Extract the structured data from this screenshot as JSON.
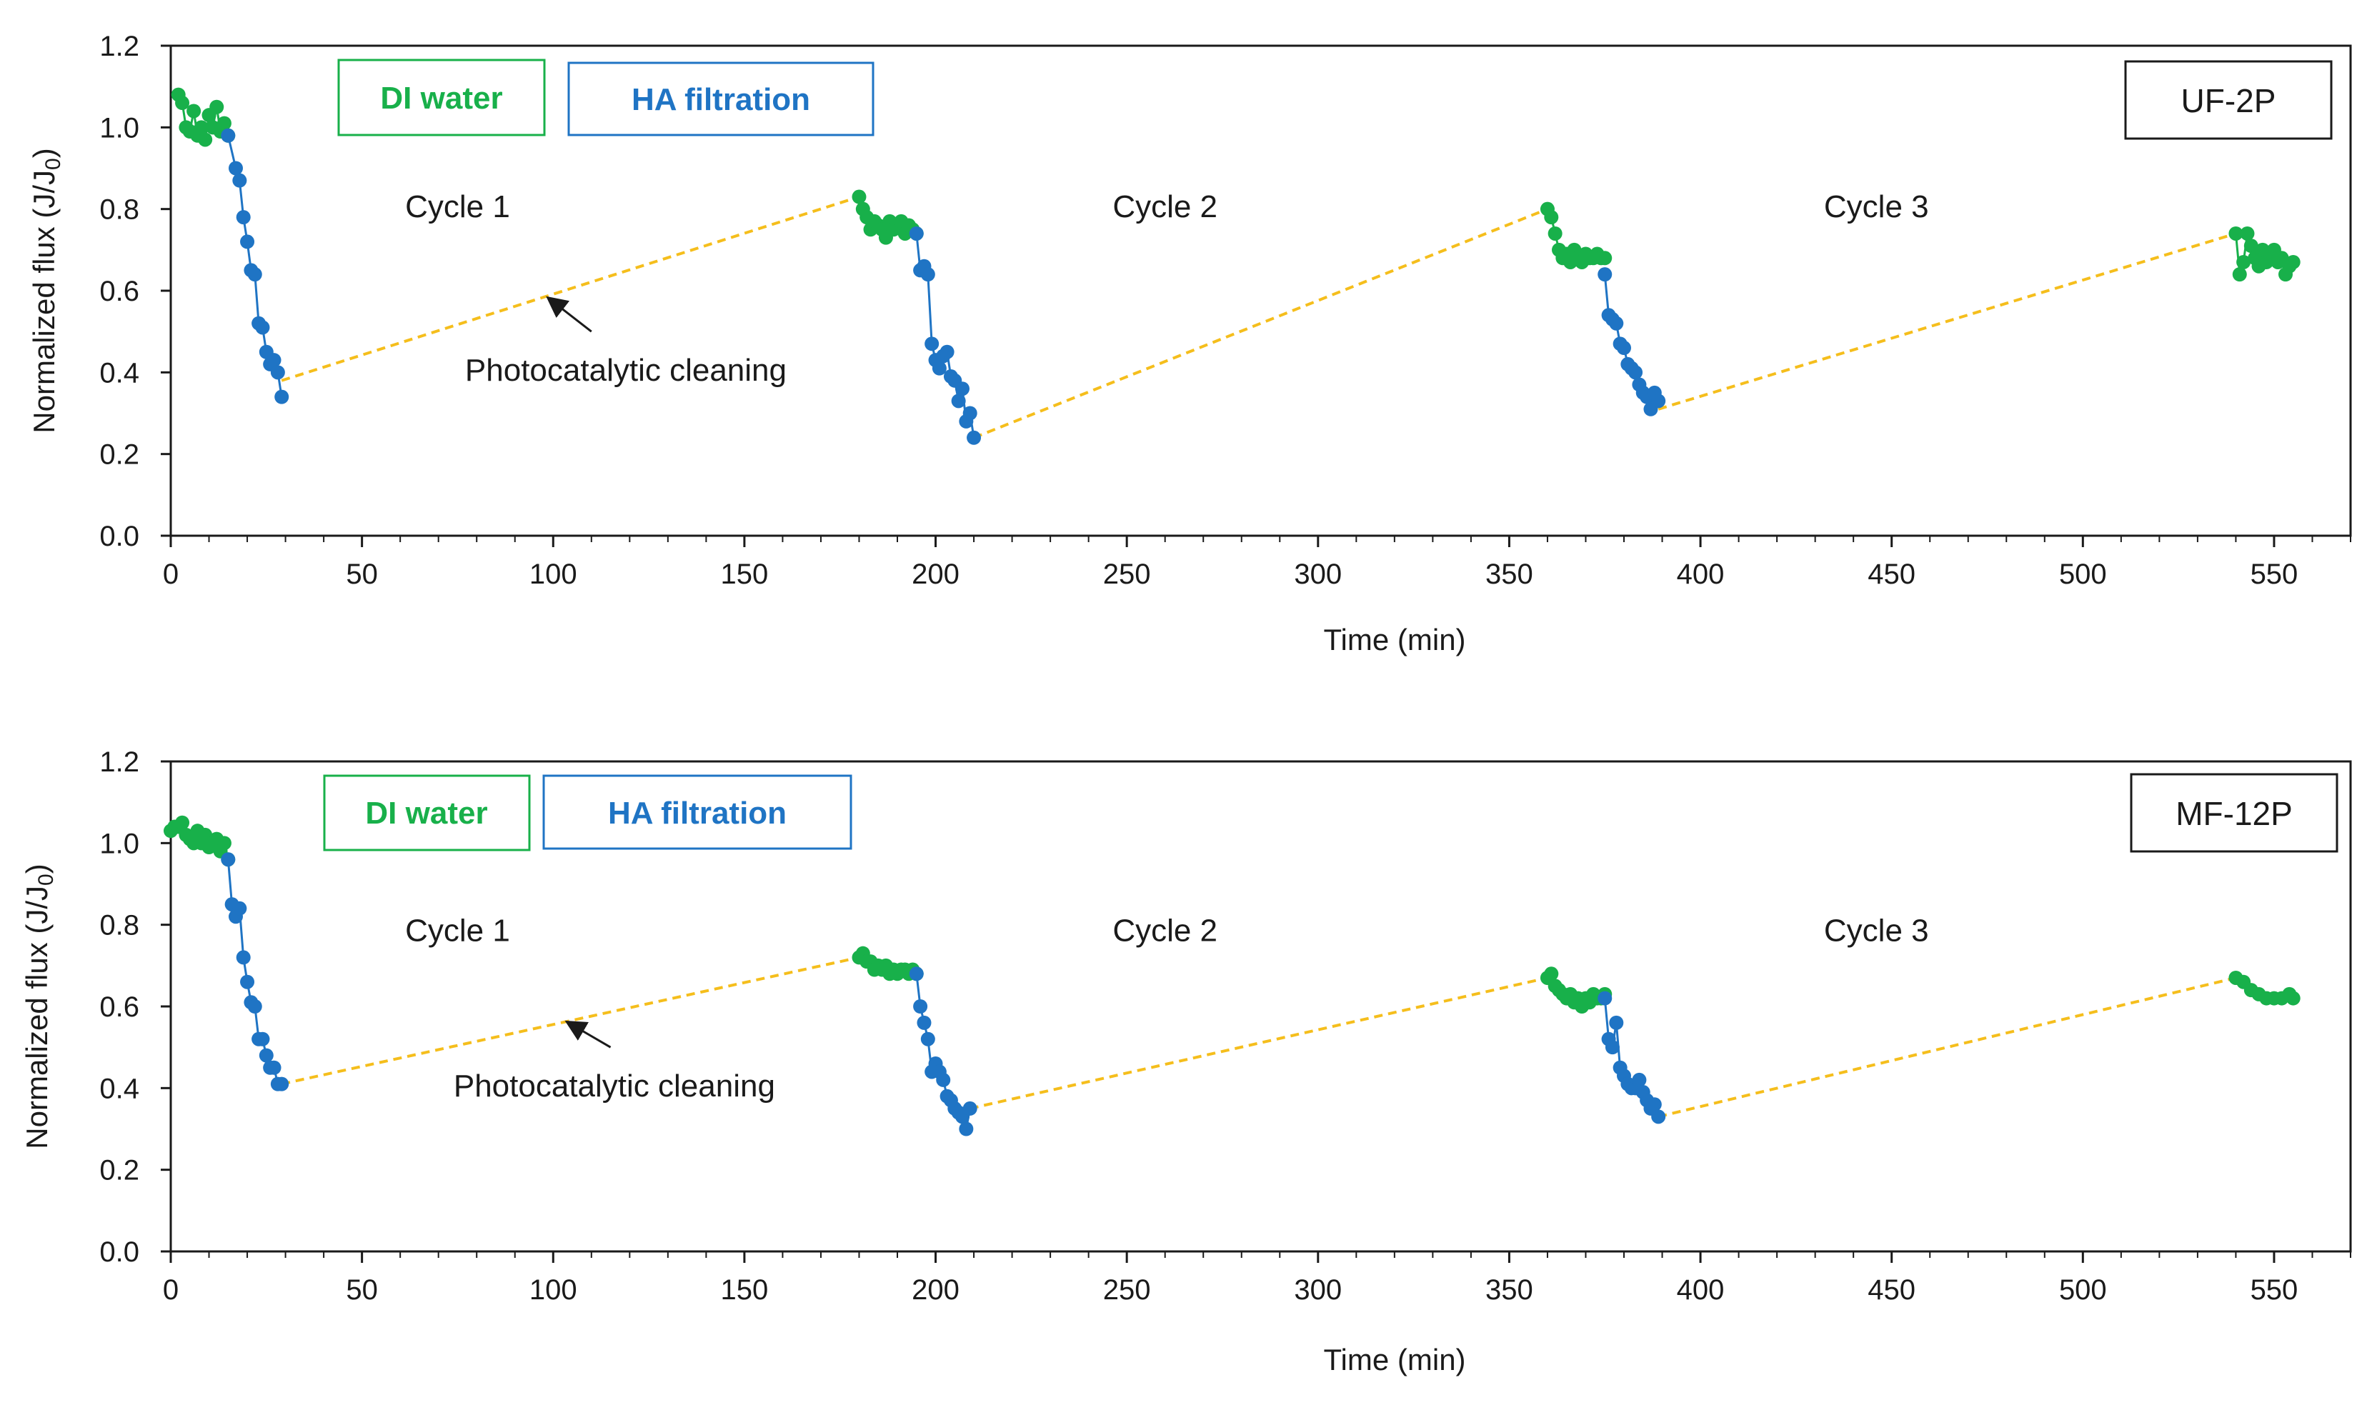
{
  "colors": {
    "di_water": "#18b04a",
    "ha_filtration": "#1f74c4",
    "cleaning": "#f5be1c",
    "axis": "#1a1a1a"
  },
  "chart_data": [
    {
      "type": "scatter",
      "id": "UF-2P",
      "xlabel": "Time (min)",
      "ylabel": "Normalized flux (J/J",
      "ylabel_sub": "0",
      "ylabel_close": ")",
      "xlim": [
        0,
        570
      ],
      "ylim": [
        0,
        1.2
      ],
      "xticks": [
        "0",
        "50",
        "100",
        "150",
        "200",
        "250",
        "300",
        "350",
        "400",
        "450",
        "500",
        "550"
      ],
      "yticks": [
        "0.0",
        "0.2",
        "0.4",
        "0.6",
        "0.8",
        "1.0",
        "1.2"
      ],
      "legend": [
        "DI water",
        "HA filtration"
      ],
      "cycle_labels": [
        {
          "text": "Cycle 1",
          "x": 75,
          "y": 0.78
        },
        {
          "text": "Cycle 2",
          "x": 260,
          "y": 0.78
        },
        {
          "text": "Cycle 3",
          "x": 446,
          "y": 0.78
        }
      ],
      "annotation": {
        "text": "Photocatalytic cleaning",
        "text_x": 119,
        "text_y": 0.38,
        "arrow_from": [
          110,
          0.5
        ],
        "arrow_to": [
          99,
          0.58
        ]
      },
      "series": [
        {
          "name": "DI water",
          "cycle": 1,
          "x": [
            2,
            3,
            4,
            5,
            6,
            7,
            8,
            9,
            10,
            11,
            12,
            13,
            14,
            15
          ],
          "y": [
            1.08,
            1.06,
            1.0,
            0.99,
            1.04,
            0.98,
            1.0,
            0.97,
            1.03,
            1.0,
            1.05,
            0.99,
            1.01,
            0.98
          ]
        },
        {
          "name": "HA filtration",
          "cycle": 1,
          "x": [
            15,
            17,
            18,
            19,
            20,
            21,
            22,
            23,
            24,
            25,
            26,
            27,
            28,
            29
          ],
          "y": [
            0.98,
            0.9,
            0.87,
            0.78,
            0.72,
            0.65,
            0.64,
            0.52,
            0.51,
            0.45,
            0.42,
            0.43,
            0.4,
            0.34
          ]
        },
        {
          "name": "DI water",
          "cycle": 2,
          "x": [
            180,
            181,
            182,
            183,
            184,
            185,
            186,
            187,
            188,
            189,
            190,
            191,
            192,
            193,
            194,
            195
          ],
          "y": [
            0.83,
            0.8,
            0.78,
            0.75,
            0.77,
            0.76,
            0.75,
            0.73,
            0.77,
            0.75,
            0.76,
            0.77,
            0.74,
            0.76,
            0.75,
            0.74
          ]
        },
        {
          "name": "HA filtration",
          "cycle": 2,
          "x": [
            195,
            196,
            197,
            198,
            199,
            200,
            201,
            202,
            203,
            204,
            205,
            206,
            207,
            208,
            209,
            210
          ],
          "y": [
            0.74,
            0.65,
            0.66,
            0.64,
            0.47,
            0.43,
            0.41,
            0.44,
            0.45,
            0.39,
            0.38,
            0.33,
            0.36,
            0.28,
            0.3,
            0.24
          ]
        },
        {
          "name": "DI water",
          "cycle": 3,
          "x": [
            360,
            361,
            362,
            363,
            364,
            365,
            366,
            367,
            368,
            369,
            370,
            371,
            372,
            373,
            374,
            375
          ],
          "y": [
            0.8,
            0.78,
            0.74,
            0.7,
            0.68,
            0.69,
            0.67,
            0.7,
            0.68,
            0.67,
            0.69,
            0.68,
            0.68,
            0.69,
            0.68,
            0.68
          ]
        },
        {
          "name": "HA filtration",
          "cycle": 3,
          "x": [
            375,
            376,
            377,
            378,
            379,
            380,
            381,
            382,
            383,
            384,
            385,
            386,
            387,
            388,
            389
          ],
          "y": [
            0.64,
            0.54,
            0.53,
            0.52,
            0.47,
            0.46,
            0.42,
            0.41,
            0.4,
            0.37,
            0.35,
            0.34,
            0.31,
            0.35,
            0.33
          ]
        },
        {
          "name": "DI water",
          "cycle": 4,
          "x": [
            540,
            541,
            542,
            543,
            544,
            545,
            546,
            547,
            548,
            549,
            550,
            551,
            552,
            553,
            554,
            555
          ],
          "y": [
            0.74,
            0.64,
            0.67,
            0.74,
            0.71,
            0.68,
            0.66,
            0.7,
            0.67,
            0.69,
            0.7,
            0.67,
            0.68,
            0.64,
            0.66,
            0.67
          ]
        },
        {
          "name": "Photocatalytic cleaning",
          "x": [
            29,
            180,
            210,
            360,
            389,
            540
          ],
          "y": [
            0.38,
            0.83,
            0.24,
            0.8,
            0.31,
            0.74
          ],
          "segments": [
            [
              0,
              1
            ],
            [
              2,
              3
            ],
            [
              4,
              5
            ]
          ]
        }
      ]
    },
    {
      "type": "scatter",
      "id": "MF-12P",
      "xlabel": "Time (min)",
      "ylabel": "Normalized flux (J/J",
      "ylabel_sub": "0",
      "ylabel_close": ")",
      "xlim": [
        0,
        570
      ],
      "ylim": [
        0,
        1.2
      ],
      "xticks": [
        "0",
        "50",
        "100",
        "150",
        "200",
        "250",
        "300",
        "350",
        "400",
        "450",
        "500",
        "550"
      ],
      "yticks": [
        "0.0",
        "0.2",
        "0.4",
        "0.6",
        "0.8",
        "1.0",
        "1.2"
      ],
      "legend": [
        "DI water",
        "HA filtration"
      ],
      "cycle_labels": [
        {
          "text": "Cycle 1",
          "x": 75,
          "y": 0.76
        },
        {
          "text": "Cycle 2",
          "x": 260,
          "y": 0.76
        },
        {
          "text": "Cycle 3",
          "x": 446,
          "y": 0.76
        }
      ],
      "annotation": {
        "text": "Photocatalytic cleaning",
        "text_x": 116,
        "text_y": 0.38,
        "arrow_from": [
          115,
          0.5
        ],
        "arrow_to": [
          104,
          0.56
        ]
      },
      "series": [
        {
          "name": "DI water",
          "cycle": 1,
          "x": [
            0,
            1,
            2,
            3,
            4,
            5,
            6,
            7,
            8,
            9,
            10,
            11,
            12,
            13,
            14,
            15
          ],
          "y": [
            1.03,
            1.04,
            1.04,
            1.05,
            1.02,
            1.01,
            1.0,
            1.03,
            1.0,
            1.02,
            0.99,
            1.0,
            1.01,
            0.98,
            1.0,
            0.96
          ]
        },
        {
          "name": "HA filtration",
          "cycle": 1,
          "x": [
            15,
            16,
            17,
            18,
            19,
            20,
            21,
            22,
            23,
            24,
            25,
            26,
            27,
            28,
            29
          ],
          "y": [
            0.96,
            0.85,
            0.82,
            0.84,
            0.72,
            0.66,
            0.61,
            0.6,
            0.52,
            0.52,
            0.48,
            0.45,
            0.45,
            0.41,
            0.41
          ]
        },
        {
          "name": "DI water",
          "cycle": 2,
          "x": [
            180,
            181,
            182,
            183,
            184,
            185,
            186,
            187,
            188,
            189,
            190,
            191,
            192,
            193,
            194,
            195
          ],
          "y": [
            0.72,
            0.73,
            0.71,
            0.71,
            0.69,
            0.7,
            0.69,
            0.7,
            0.68,
            0.69,
            0.68,
            0.69,
            0.69,
            0.68,
            0.69,
            0.68
          ]
        },
        {
          "name": "HA filtration",
          "cycle": 2,
          "x": [
            195,
            196,
            197,
            198,
            199,
            200,
            201,
            202,
            203,
            204,
            205,
            206,
            207,
            208,
            209
          ],
          "y": [
            0.68,
            0.6,
            0.56,
            0.52,
            0.44,
            0.46,
            0.44,
            0.42,
            0.38,
            0.37,
            0.35,
            0.34,
            0.33,
            0.3,
            0.35
          ]
        },
        {
          "name": "DI water",
          "cycle": 3,
          "x": [
            360,
            361,
            362,
            363,
            364,
            365,
            366,
            367,
            368,
            369,
            370,
            371,
            372,
            373,
            374,
            375
          ],
          "y": [
            0.67,
            0.68,
            0.65,
            0.64,
            0.63,
            0.62,
            0.63,
            0.61,
            0.62,
            0.6,
            0.62,
            0.61,
            0.63,
            0.62,
            0.62,
            0.63
          ]
        },
        {
          "name": "HA filtration",
          "cycle": 3,
          "x": [
            375,
            376,
            377,
            378,
            379,
            380,
            381,
            382,
            383,
            384,
            385,
            386,
            387,
            388,
            389
          ],
          "y": [
            0.62,
            0.52,
            0.5,
            0.56,
            0.45,
            0.43,
            0.41,
            0.4,
            0.4,
            0.42,
            0.39,
            0.37,
            0.35,
            0.36,
            0.33
          ]
        },
        {
          "name": "DI water",
          "cycle": 4,
          "x": [
            540,
            542,
            544,
            546,
            548,
            550,
            552,
            554,
            555
          ],
          "y": [
            0.67,
            0.66,
            0.64,
            0.63,
            0.62,
            0.62,
            0.62,
            0.63,
            0.62
          ]
        },
        {
          "name": "Photocatalytic cleaning",
          "x": [
            29,
            180,
            209,
            360,
            389,
            540
          ],
          "y": [
            0.41,
            0.72,
            0.35,
            0.67,
            0.33,
            0.67
          ],
          "segments": [
            [
              0,
              1
            ],
            [
              2,
              3
            ],
            [
              4,
              5
            ]
          ]
        }
      ]
    }
  ]
}
